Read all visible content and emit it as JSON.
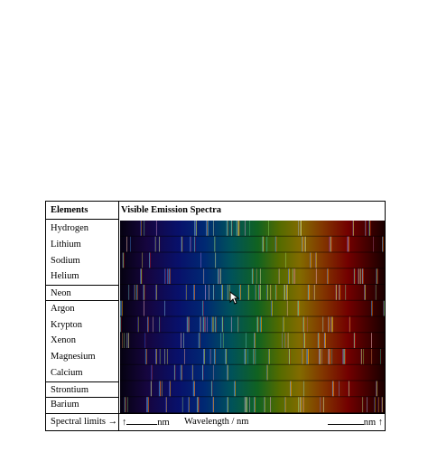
{
  "table": {
    "header_elements": "Elements",
    "header_spectra": "Visible Emission Spectra",
    "elements": [
      "Hydrogen",
      "Lithium",
      "Sodium",
      "Helium",
      "Neon",
      "Argon",
      "Krypton",
      "Xenon",
      "Magnesium",
      "Calcium",
      "Strontium",
      "Barium"
    ],
    "boxed_elements": [
      "Neon",
      "Strontium"
    ]
  },
  "footer": {
    "spectral_limits_label": "Spectral limits",
    "arrow_right": "→",
    "arrow_up": "↑",
    "unit": "nm",
    "wavelength_label": "Wavelength / nm"
  },
  "colors": {
    "background": "#000000",
    "spectrum_gradient": [
      "#0a0320",
      "#2a0a7a",
      "#1020d0",
      "#0050e0",
      "#00a0b0",
      "#20c040",
      "#a0d000",
      "#ffd000",
      "#ff7000",
      "#e00000",
      "#400000"
    ]
  }
}
